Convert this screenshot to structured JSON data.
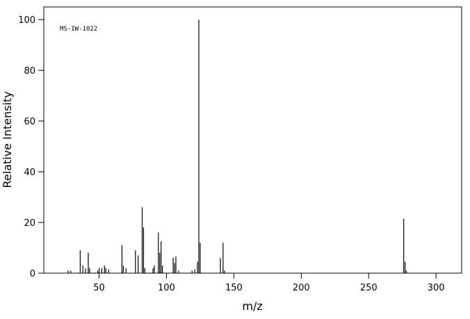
{
  "chart_data": {
    "type": "stem",
    "annotation": "MS-IW-1022",
    "x_label": "m/z",
    "y_label": "Relative Intensity",
    "xlim": [
      9,
      319
    ],
    "ylim": [
      0,
      105
    ],
    "xticks": [
      50,
      100,
      150,
      200,
      250,
      300
    ],
    "yticks": [
      0,
      20,
      40,
      60,
      80,
      100
    ],
    "color": "#000000",
    "x": [
      27,
      29,
      36,
      38,
      40,
      42,
      43,
      49,
      50,
      52,
      54,
      55,
      57,
      67,
      68,
      70,
      77,
      79,
      82,
      83,
      84,
      90,
      91,
      94,
      95,
      96,
      97,
      105,
      106,
      107,
      109,
      119,
      121,
      123,
      124,
      125,
      140,
      142,
      143,
      276,
      277,
      278
    ],
    "values": [
      1,
      1,
      9,
      3,
      2,
      8,
      2,
      1,
      2,
      2,
      3,
      2,
      1.5,
      11,
      3,
      2,
      9,
      7,
      26,
      18,
      2,
      2,
      3,
      16,
      8,
      12.5,
      3,
      6,
      4,
      6.5,
      1,
      1,
      1.5,
      4.5,
      100,
      12,
      6,
      12,
      1,
      21.5,
      4.5,
      1
    ]
  }
}
